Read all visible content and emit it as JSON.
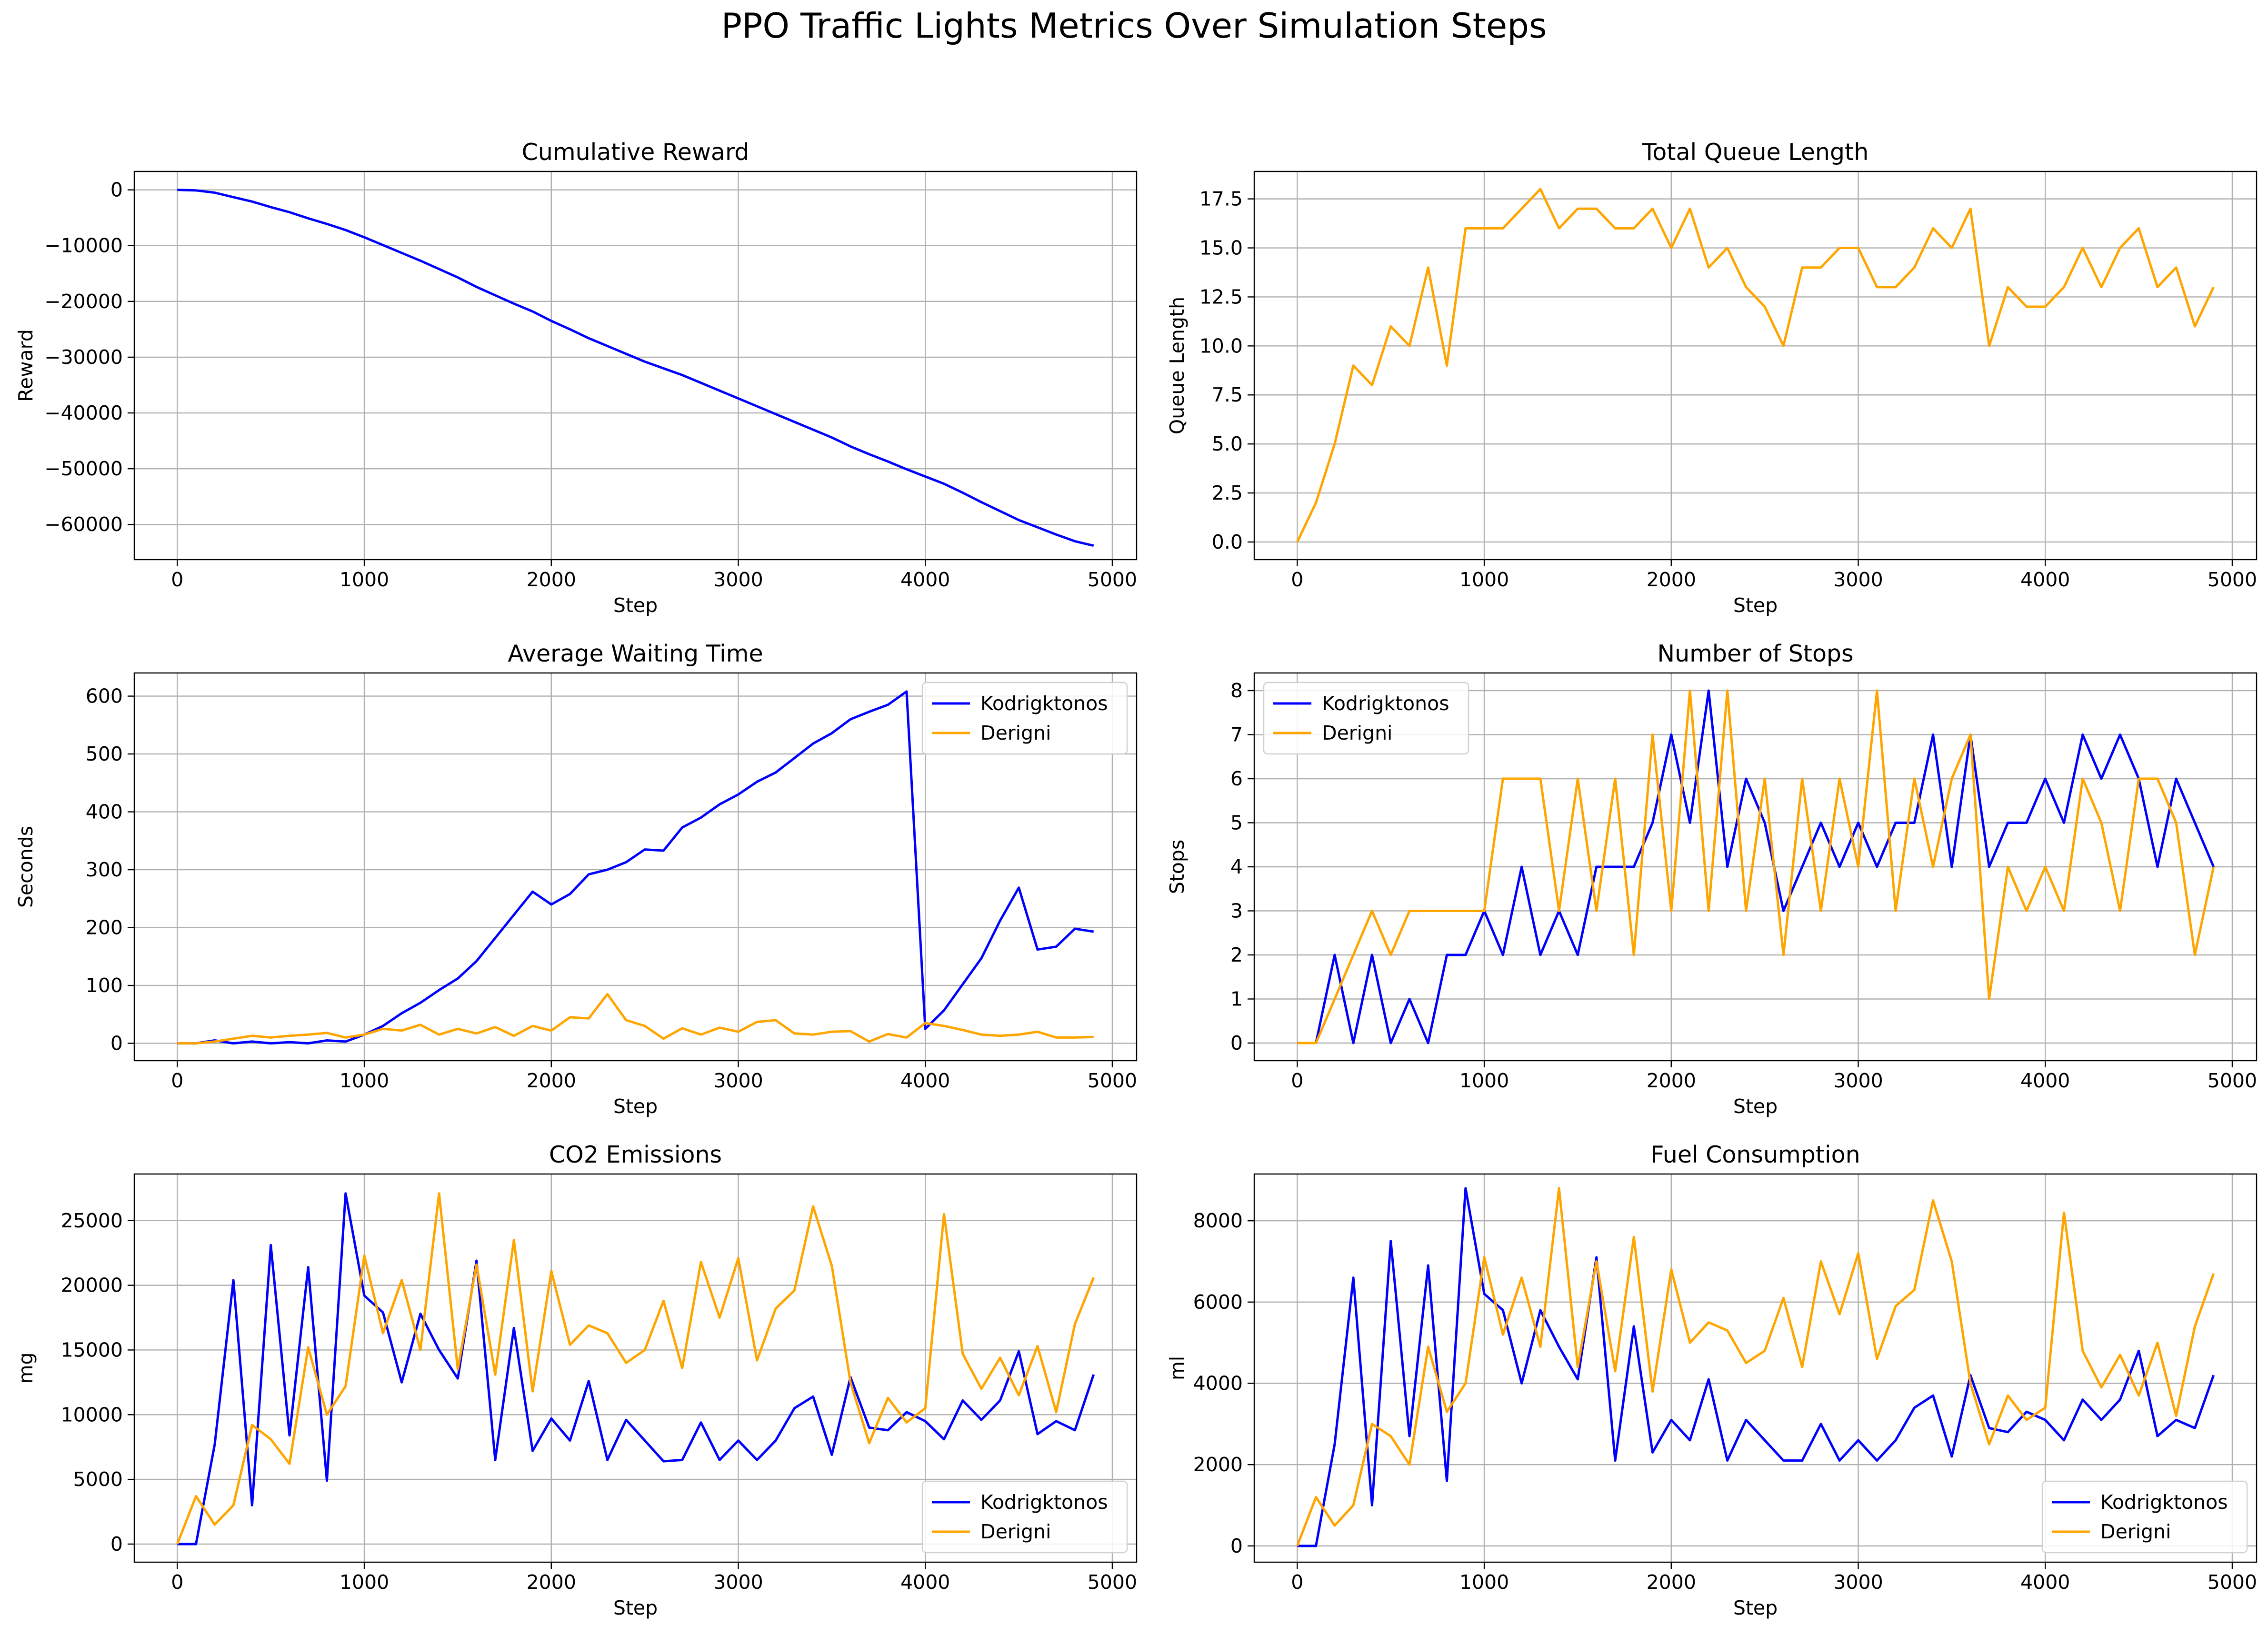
{
  "figure": {
    "title": "PPO Traffic Lights Metrics Over Simulation Steps"
  },
  "colors": {
    "kodrigktonos": "#0000ff",
    "derigni": "#ffa500",
    "grid": "#b0b0b0",
    "axis": "#000000"
  },
  "chart_data": [
    {
      "id": "cumulative-reward",
      "type": "line",
      "title": "Cumulative Reward",
      "xlabel": "Step",
      "ylabel": "Reward",
      "xlim": [
        -230,
        5130
      ],
      "ylim": [
        -66300,
        3300
      ],
      "xticks": [
        0,
        1000,
        2000,
        3000,
        4000,
        5000
      ],
      "yticks": [
        0,
        -10000,
        -20000,
        -30000,
        -40000,
        -50000,
        -60000
      ],
      "ytick_labels": [
        "0",
        "−10000",
        "−20000",
        "−30000",
        "−40000",
        "−50000",
        "−60000"
      ],
      "grid": true,
      "legend": null,
      "x": [
        0,
        100,
        200,
        300,
        400,
        500,
        600,
        700,
        800,
        900,
        1000,
        1100,
        1200,
        1300,
        1400,
        1500,
        1600,
        1700,
        1800,
        1900,
        2000,
        2100,
        2200,
        2300,
        2400,
        2500,
        2600,
        2700,
        2800,
        2900,
        3000,
        3100,
        3200,
        3300,
        3400,
        3500,
        3600,
        3700,
        3800,
        3900,
        4000,
        4100,
        4200,
        4300,
        4400,
        4500,
        4600,
        4700,
        4800,
        4900
      ],
      "series": [
        {
          "name": "",
          "color": "#0000ff",
          "values": [
            0,
            -100,
            -500,
            -1300,
            -2100,
            -3100,
            -4000,
            -5100,
            -6100,
            -7200,
            -8500,
            -9900,
            -11300,
            -12700,
            -14200,
            -15700,
            -17400,
            -18900,
            -20400,
            -21800,
            -23500,
            -25000,
            -26600,
            -28000,
            -29400,
            -30800,
            -32000,
            -33200,
            -34600,
            -36000,
            -37400,
            -38800,
            -40200,
            -41600,
            -43000,
            -44400,
            -46000,
            -47400,
            -48700,
            -50100,
            -51400,
            -52700,
            -54300,
            -56000,
            -57600,
            -59200,
            -60500,
            -61800,
            -63000,
            -63800
          ]
        }
      ]
    },
    {
      "id": "total-queue-length",
      "type": "line",
      "title": "Total Queue Length",
      "xlabel": "Step",
      "ylabel": "Queue Length",
      "xlim": [
        -230,
        5130
      ],
      "ylim": [
        -0.9,
        18.9
      ],
      "xticks": [
        0,
        1000,
        2000,
        3000,
        4000,
        5000
      ],
      "yticks": [
        0.0,
        2.5,
        5.0,
        7.5,
        10.0,
        12.5,
        15.0,
        17.5
      ],
      "ytick_labels": [
        "0.0",
        "2.5",
        "5.0",
        "7.5",
        "10.0",
        "12.5",
        "15.0",
        "17.5"
      ],
      "grid": true,
      "legend": null,
      "x": [
        0,
        100,
        200,
        300,
        400,
        500,
        600,
        700,
        800,
        900,
        1000,
        1100,
        1200,
        1300,
        1400,
        1500,
        1600,
        1700,
        1800,
        1900,
        2000,
        2100,
        2200,
        2300,
        2400,
        2500,
        2600,
        2700,
        2800,
        2900,
        3000,
        3100,
        3200,
        3300,
        3400,
        3500,
        3600,
        3700,
        3800,
        3900,
        4000,
        4100,
        4200,
        4300,
        4400,
        4500,
        4600,
        4700,
        4800,
        4900
      ],
      "series": [
        {
          "name": "",
          "color": "#ffa500",
          "values": [
            0,
            2,
            5,
            9,
            8,
            11,
            10,
            14,
            9,
            16,
            16,
            16,
            17,
            18,
            16,
            17,
            17,
            16,
            16,
            17,
            15,
            17,
            14,
            15,
            13,
            12,
            10,
            14,
            14,
            15,
            15,
            13,
            13,
            14,
            16,
            15,
            17,
            10,
            13,
            12,
            12,
            13,
            15,
            13,
            15,
            16,
            13,
            14,
            11,
            13
          ]
        }
      ]
    },
    {
      "id": "average-waiting-time",
      "type": "line",
      "title": "Average Waiting Time",
      "xlabel": "Step",
      "ylabel": "Seconds",
      "xlim": [
        -230,
        5130
      ],
      "ylim": [
        -30,
        640
      ],
      "xticks": [
        0,
        1000,
        2000,
        3000,
        4000,
        5000
      ],
      "yticks": [
        0,
        100,
        200,
        300,
        400,
        500,
        600
      ],
      "ytick_labels": [
        "0",
        "100",
        "200",
        "300",
        "400",
        "500",
        "600"
      ],
      "grid": true,
      "legend": "upper right",
      "x": [
        0,
        100,
        200,
        300,
        400,
        500,
        600,
        700,
        800,
        900,
        1000,
        1100,
        1200,
        1300,
        1400,
        1500,
        1600,
        1700,
        1800,
        1900,
        2000,
        2100,
        2200,
        2300,
        2400,
        2500,
        2600,
        2700,
        2800,
        2900,
        3000,
        3100,
        3200,
        3300,
        3400,
        3500,
        3600,
        3700,
        3800,
        3900,
        4000,
        4100,
        4200,
        4300,
        4400,
        4500,
        4600,
        4700,
        4800,
        4900
      ],
      "series": [
        {
          "name": "Kodrigktonos",
          "color": "#0000ff",
          "values": [
            0,
            0,
            5,
            0,
            3,
            0,
            2,
            0,
            5,
            3,
            15,
            30,
            52,
            70,
            92,
            112,
            142,
            182,
            222,
            262,
            240,
            258,
            292,
            300,
            313,
            335,
            333,
            373,
            390,
            413,
            430,
            452,
            468,
            493,
            518,
            536,
            560,
            573,
            585,
            608,
            25,
            57,
            102,
            147,
            212,
            269,
            162,
            167,
            198,
            193
          ]
        },
        {
          "name": "Derigni",
          "color": "#ffa500",
          "values": [
            0,
            0,
            3,
            8,
            13,
            10,
            13,
            15,
            18,
            10,
            15,
            25,
            22,
            32,
            15,
            25,
            17,
            28,
            13,
            30,
            22,
            45,
            43,
            85,
            40,
            30,
            8,
            26,
            15,
            27,
            20,
            37,
            40,
            17,
            15,
            20,
            21,
            3,
            16,
            10,
            35,
            30,
            23,
            15,
            13,
            15,
            20,
            10,
            10,
            11
          ]
        }
      ]
    },
    {
      "id": "number-of-stops",
      "type": "line",
      "title": "Number of Stops",
      "xlabel": "Step",
      "ylabel": "Stops",
      "xlim": [
        -230,
        5130
      ],
      "ylim": [
        -0.4,
        8.4
      ],
      "xticks": [
        0,
        1000,
        2000,
        3000,
        4000,
        5000
      ],
      "yticks": [
        0,
        1,
        2,
        3,
        4,
        5,
        6,
        7,
        8
      ],
      "ytick_labels": [
        "0",
        "1",
        "2",
        "3",
        "4",
        "5",
        "6",
        "7",
        "8"
      ],
      "grid": true,
      "legend": "upper left",
      "x": [
        0,
        100,
        200,
        300,
        400,
        500,
        600,
        700,
        800,
        900,
        1000,
        1100,
        1200,
        1300,
        1400,
        1500,
        1600,
        1700,
        1800,
        1900,
        2000,
        2100,
        2200,
        2300,
        2400,
        2500,
        2600,
        2700,
        2800,
        2900,
        3000,
        3100,
        3200,
        3300,
        3400,
        3500,
        3600,
        3700,
        3800,
        3900,
        4000,
        4100,
        4200,
        4300,
        4400,
        4500,
        4600,
        4700,
        4800,
        4900
      ],
      "series": [
        {
          "name": "Kodrigktonos",
          "color": "#0000ff",
          "values": [
            0,
            0,
            2,
            0,
            2,
            0,
            1,
            0,
            2,
            2,
            3,
            2,
            4,
            2,
            3,
            2,
            4,
            4,
            4,
            5,
            7,
            5,
            8,
            4,
            6,
            5,
            3,
            4,
            5,
            4,
            5,
            4,
            5,
            5,
            7,
            4,
            7,
            4,
            5,
            5,
            6,
            5,
            7,
            6,
            7,
            6,
            4,
            6,
            5,
            4
          ]
        },
        {
          "name": "Derigni",
          "color": "#ffa500",
          "values": [
            0,
            0,
            1,
            2,
            3,
            2,
            3,
            3,
            3,
            3,
            3,
            6,
            6,
            6,
            3,
            6,
            3,
            6,
            2,
            7,
            3,
            8,
            3,
            8,
            3,
            6,
            2,
            6,
            3,
            6,
            4,
            8,
            3,
            6,
            4,
            6,
            7,
            1,
            4,
            3,
            4,
            3,
            6,
            5,
            3,
            6,
            6,
            5,
            2,
            4
          ]
        }
      ]
    },
    {
      "id": "co2-emissions",
      "type": "line",
      "title": "CO2 Emissions",
      "xlabel": "Step",
      "ylabel": "mg",
      "xlim": [
        -230,
        5130
      ],
      "ylim": [
        -1400,
        28600
      ],
      "xticks": [
        0,
        1000,
        2000,
        3000,
        4000,
        5000
      ],
      "yticks": [
        0,
        5000,
        10000,
        15000,
        20000,
        25000
      ],
      "ytick_labels": [
        "0",
        "5000",
        "10000",
        "15000",
        "20000",
        "25000"
      ],
      "grid": true,
      "legend": "lower right",
      "x": [
        0,
        100,
        200,
        300,
        400,
        500,
        600,
        700,
        800,
        900,
        1000,
        1100,
        1200,
        1300,
        1400,
        1500,
        1600,
        1700,
        1800,
        1900,
        2000,
        2100,
        2200,
        2300,
        2400,
        2500,
        2600,
        2700,
        2800,
        2900,
        3000,
        3100,
        3200,
        3300,
        3400,
        3500,
        3600,
        3700,
        3800,
        3900,
        4000,
        4100,
        4200,
        4300,
        4400,
        4500,
        4600,
        4700,
        4800,
        4900
      ],
      "series": [
        {
          "name": "Kodrigktonos",
          "color": "#0000ff",
          "values": [
            0,
            0,
            7700,
            20400,
            3000,
            23100,
            8400,
            21400,
            4900,
            27100,
            19200,
            17900,
            12500,
            17800,
            15000,
            12800,
            21900,
            6500,
            16700,
            7200,
            9700,
            8000,
            12600,
            6500,
            9600,
            8000,
            6400,
            6500,
            9400,
            6500,
            8000,
            6500,
            8000,
            10500,
            11400,
            6900,
            12900,
            9000,
            8800,
            10200,
            9500,
            8100,
            11100,
            9600,
            11100,
            14900,
            8500,
            9500,
            8800,
            13100
          ]
        },
        {
          "name": "Derigni",
          "color": "#ffa500",
          "values": [
            0,
            3700,
            1500,
            3000,
            9200,
            8100,
            6200,
            15200,
            10000,
            12200,
            22300,
            16300,
            20400,
            15000,
            27100,
            13500,
            21600,
            13100,
            23500,
            11800,
            21100,
            15400,
            16900,
            16300,
            14000,
            15000,
            18800,
            13600,
            21800,
            17500,
            22100,
            14200,
            18200,
            19600,
            26100,
            21500,
            12500,
            7800,
            11300,
            9400,
            10500,
            25500,
            14700,
            12000,
            14400,
            11500,
            15300,
            10200,
            17000,
            20600
          ]
        }
      ]
    },
    {
      "id": "fuel-consumption",
      "type": "line",
      "title": "Fuel Consumption",
      "xlabel": "Step",
      "ylabel": "ml",
      "xlim": [
        -230,
        5130
      ],
      "ylim": [
        -400,
        9150
      ],
      "xticks": [
        0,
        1000,
        2000,
        3000,
        4000,
        5000
      ],
      "yticks": [
        0,
        2000,
        4000,
        6000,
        8000
      ],
      "ytick_labels": [
        "0",
        "2000",
        "4000",
        "6000",
        "8000"
      ],
      "grid": true,
      "legend": "lower right",
      "x": [
        0,
        100,
        200,
        300,
        400,
        500,
        600,
        700,
        800,
        900,
        1000,
        1100,
        1200,
        1300,
        1400,
        1500,
        1600,
        1700,
        1800,
        1900,
        2000,
        2100,
        2200,
        2300,
        2400,
        2500,
        2600,
        2700,
        2800,
        2900,
        3000,
        3100,
        3200,
        3300,
        3400,
        3500,
        3600,
        3700,
        3800,
        3900,
        4000,
        4100,
        4200,
        4300,
        4400,
        4500,
        4600,
        4700,
        4800,
        4900
      ],
      "series": [
        {
          "name": "Kodrigktonos",
          "color": "#0000ff",
          "values": [
            0,
            0,
            2500,
            6600,
            1000,
            7500,
            2700,
            6900,
            1600,
            8800,
            6200,
            5800,
            4000,
            5800,
            4900,
            4100,
            7100,
            2100,
            5400,
            2300,
            3100,
            2600,
            4100,
            2100,
            3100,
            2600,
            2100,
            2100,
            3000,
            2100,
            2600,
            2100,
            2600,
            3400,
            3700,
            2200,
            4200,
            2900,
            2800,
            3300,
            3100,
            2600,
            3600,
            3100,
            3600,
            4800,
            2700,
            3100,
            2900,
            4200
          ]
        },
        {
          "name": "Derigni",
          "color": "#ffa500",
          "values": [
            0,
            1200,
            500,
            1000,
            3000,
            2700,
            2000,
            4900,
            3300,
            4000,
            7100,
            5200,
            6600,
            4900,
            8800,
            4400,
            7000,
            4300,
            7600,
            3800,
            6800,
            5000,
            5500,
            5300,
            4500,
            4800,
            6100,
            4400,
            7000,
            5700,
            7200,
            4600,
            5900,
            6300,
            8500,
            7000,
            4000,
            2500,
            3700,
            3100,
            3400,
            8200,
            4800,
            3900,
            4700,
            3700,
            5000,
            3200,
            5400,
            6700
          ]
        }
      ]
    }
  ]
}
